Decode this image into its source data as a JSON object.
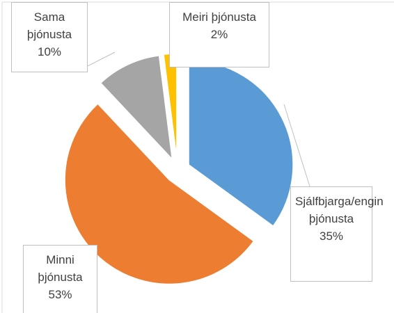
{
  "chart_data": {
    "type": "pie",
    "categories": [
      "Sjálfbjarga/engin þjónusta",
      "Minni þjónusta",
      "Sama þjónusta",
      "Meiri þjónusta"
    ],
    "values": [
      35,
      53,
      10,
      2
    ],
    "value_labels": [
      "35%",
      "53%",
      "10%",
      "2%"
    ],
    "colors": [
      "#5b9bd5",
      "#ed7d31",
      "#a5a5a5",
      "#ffc000"
    ]
  }
}
